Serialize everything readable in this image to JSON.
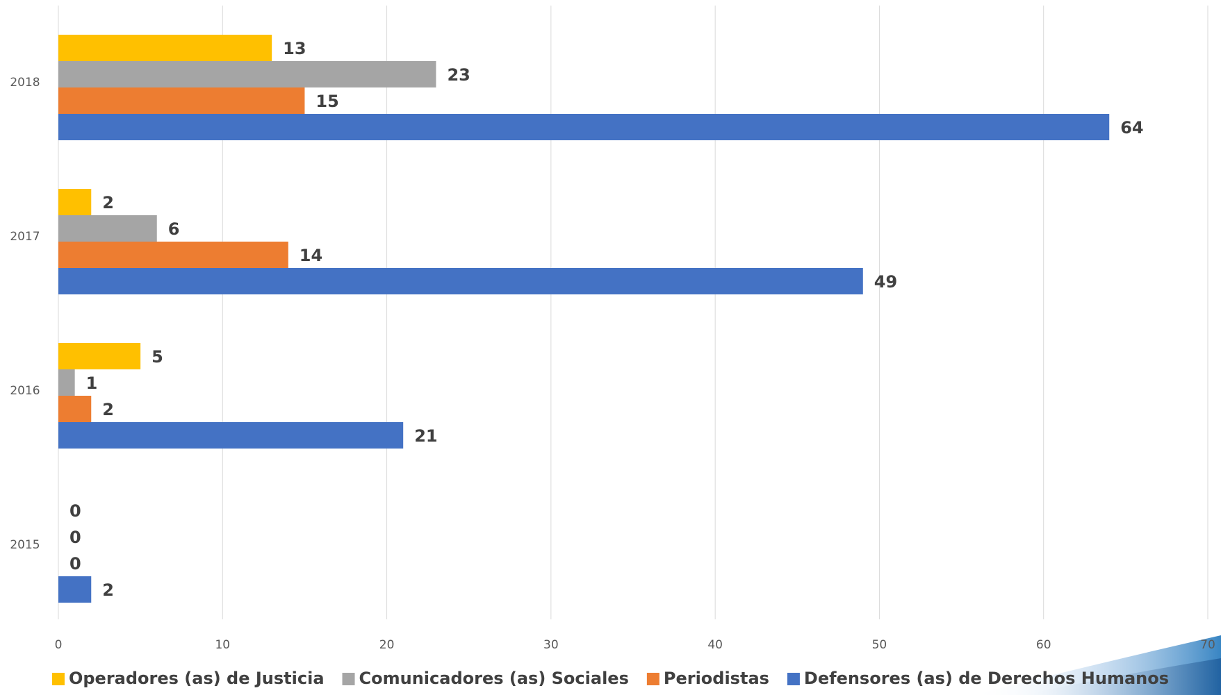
{
  "chart_data": {
    "type": "bar",
    "orientation": "horizontal",
    "categories": [
      "2018",
      "2017",
      "2016",
      "2015"
    ],
    "series": [
      {
        "name": "Operadores (as) de Justicia",
        "color": "#FFC000",
        "values": [
          13,
          2,
          5,
          0
        ]
      },
      {
        "name": "Comunicadores (as) Sociales",
        "color": "#A5A5A5",
        "values": [
          23,
          6,
          1,
          0
        ]
      },
      {
        "name": "Periodistas",
        "color": "#ED7D31",
        "values": [
          15,
          14,
          2,
          0
        ]
      },
      {
        "name": "Defensores (as) de Derechos Humanos",
        "color": "#4472C4",
        "values": [
          64,
          49,
          21,
          2
        ]
      }
    ],
    "xlim": [
      0,
      70
    ],
    "x_ticks": [
      0,
      10,
      20,
      30,
      40,
      50,
      60,
      70
    ],
    "title": "",
    "xlabel": "",
    "ylabel": "",
    "grid": "vertical",
    "legend_position": "bottom",
    "data_labels": true
  }
}
